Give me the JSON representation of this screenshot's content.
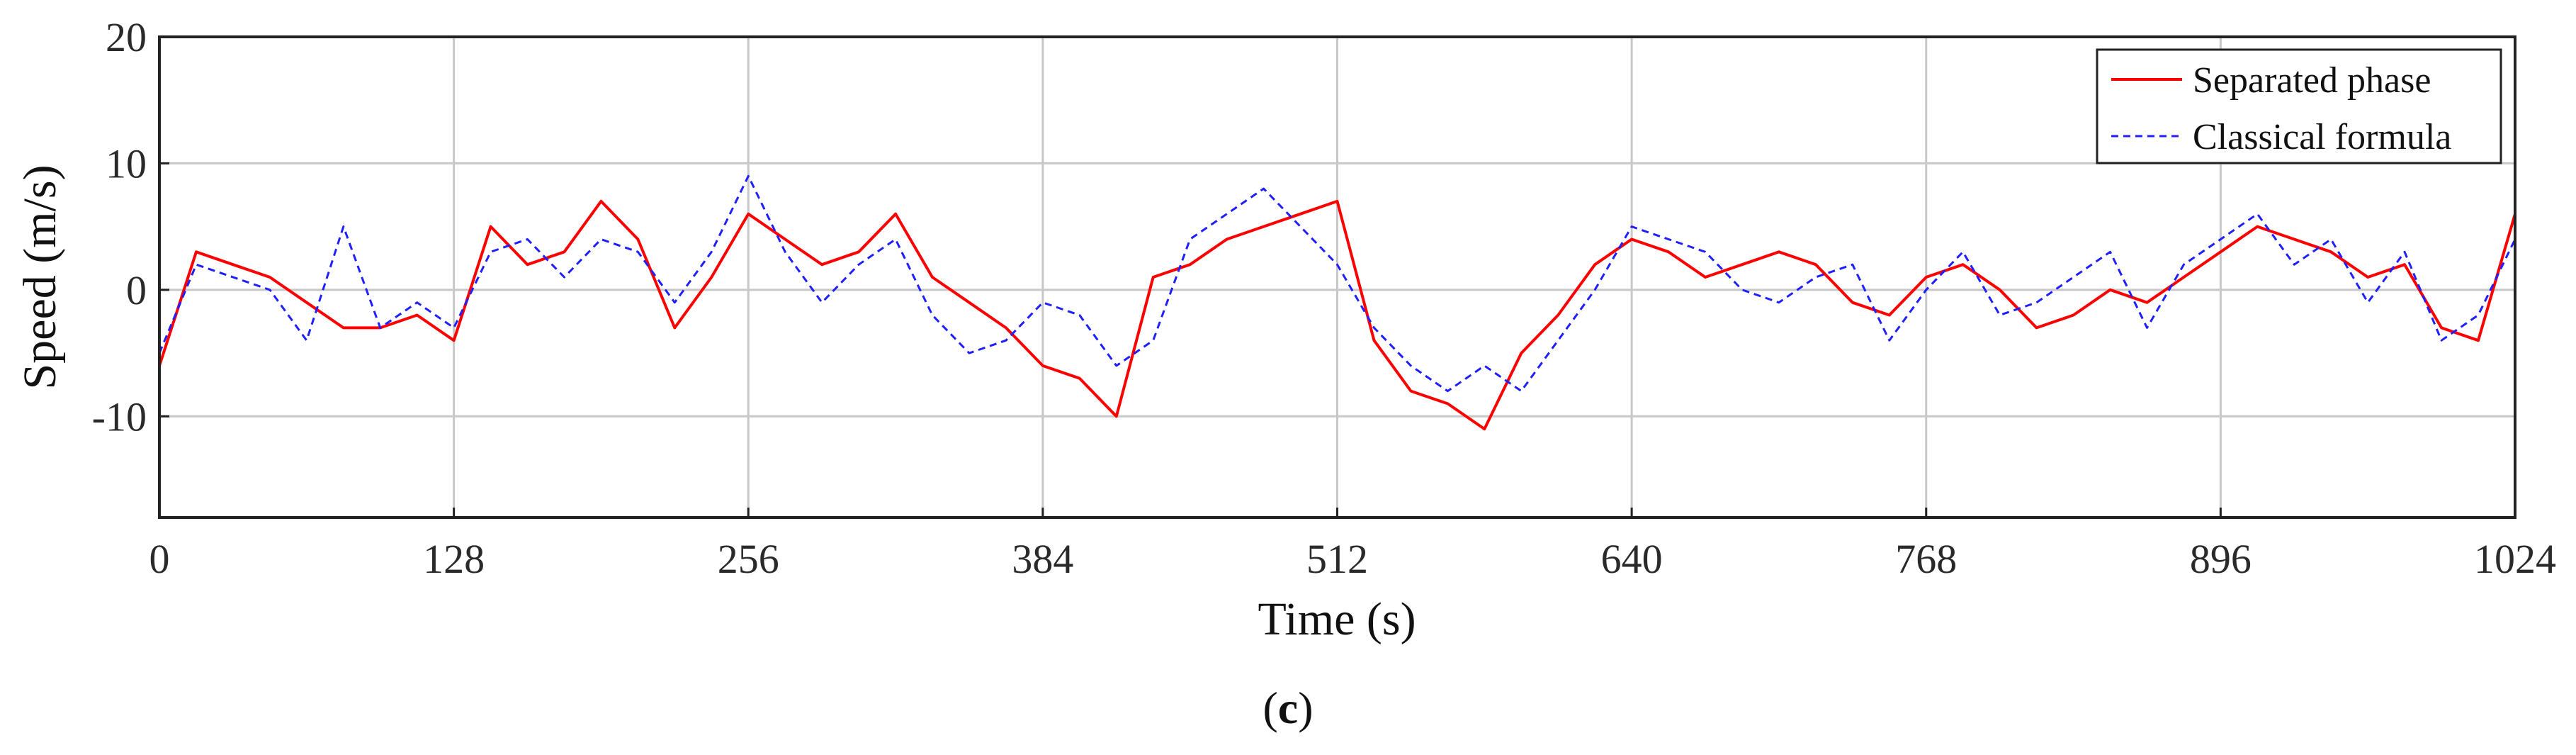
{
  "chart_data": {
    "type": "line",
    "title": "",
    "xlabel": "Time (s)",
    "ylabel": "Speed (m/s)",
    "xlim": [
      0,
      1024
    ],
    "ylim": [
      -18,
      20
    ],
    "x_ticks": [
      0,
      128,
      256,
      384,
      512,
      640,
      768,
      896,
      1024
    ],
    "y_ticks": [
      20,
      10,
      0,
      -10
    ],
    "grid": true,
    "legend_position": "top-right",
    "caption_open": "(",
    "caption_letter": "c",
    "caption_close": ")",
    "series": [
      {
        "name": "Separated phase",
        "color": "#ff0000",
        "style": "solid",
        "x": [
          0,
          16,
          32,
          48,
          64,
          80,
          96,
          112,
          128,
          144,
          160,
          176,
          192,
          208,
          224,
          240,
          256,
          272,
          288,
          304,
          320,
          336,
          352,
          368,
          384,
          400,
          416,
          432,
          448,
          464,
          480,
          496,
          512,
          528,
          544,
          560,
          576,
          592,
          608,
          624,
          640,
          656,
          672,
          688,
          704,
          720,
          736,
          752,
          768,
          784,
          800,
          816,
          832,
          848,
          864,
          880,
          896,
          912,
          928,
          944,
          960,
          976,
          992,
          1008,
          1024
        ],
        "values": [
          -6,
          3,
          2,
          1,
          -1,
          -3,
          -3,
          -2,
          -4,
          5,
          2,
          3,
          7,
          4,
          -3,
          1,
          6,
          4,
          2,
          3,
          6,
          1,
          -1,
          -3,
          -6,
          -7,
          -10,
          1,
          2,
          4,
          5,
          6,
          7,
          -4,
          -8,
          -9,
          -11,
          -5,
          -2,
          2,
          4,
          3,
          1,
          2,
          3,
          2,
          -1,
          -2,
          1,
          2,
          0,
          -3,
          -2,
          0,
          -1,
          1,
          3,
          5,
          4,
          3,
          1,
          2,
          -3,
          -4,
          6
        ]
      },
      {
        "name": "Classical formula",
        "color": "#1f1fff",
        "style": "dashed",
        "x": [
          0,
          16,
          32,
          48,
          64,
          80,
          96,
          112,
          128,
          144,
          160,
          176,
          192,
          208,
          224,
          240,
          256,
          272,
          288,
          304,
          320,
          336,
          352,
          368,
          384,
          400,
          416,
          432,
          448,
          464,
          480,
          496,
          512,
          528,
          544,
          560,
          576,
          592,
          608,
          624,
          640,
          656,
          672,
          688,
          704,
          720,
          736,
          752,
          768,
          784,
          800,
          816,
          832,
          848,
          864,
          880,
          896,
          912,
          928,
          944,
          960,
          976,
          992,
          1008,
          1024
        ],
        "values": [
          -5,
          2,
          1,
          0,
          -4,
          5,
          -3,
          -1,
          -3,
          3,
          4,
          1,
          4,
          3,
          -1,
          3,
          9,
          3,
          -1,
          2,
          4,
          -2,
          -5,
          -4,
          -1,
          -2,
          -6,
          -4,
          4,
          6,
          8,
          5,
          2,
          -3,
          -6,
          -8,
          -6,
          -8,
          -4,
          0,
          5,
          4,
          3,
          0,
          -1,
          1,
          2,
          -4,
          0,
          3,
          -2,
          -1,
          1,
          3,
          -3,
          2,
          4,
          6,
          2,
          4,
          -1,
          3,
          -4,
          -2,
          4
        ]
      }
    ]
  },
  "legend": {
    "entries": [
      "Separated phase",
      "Classical formula"
    ]
  }
}
